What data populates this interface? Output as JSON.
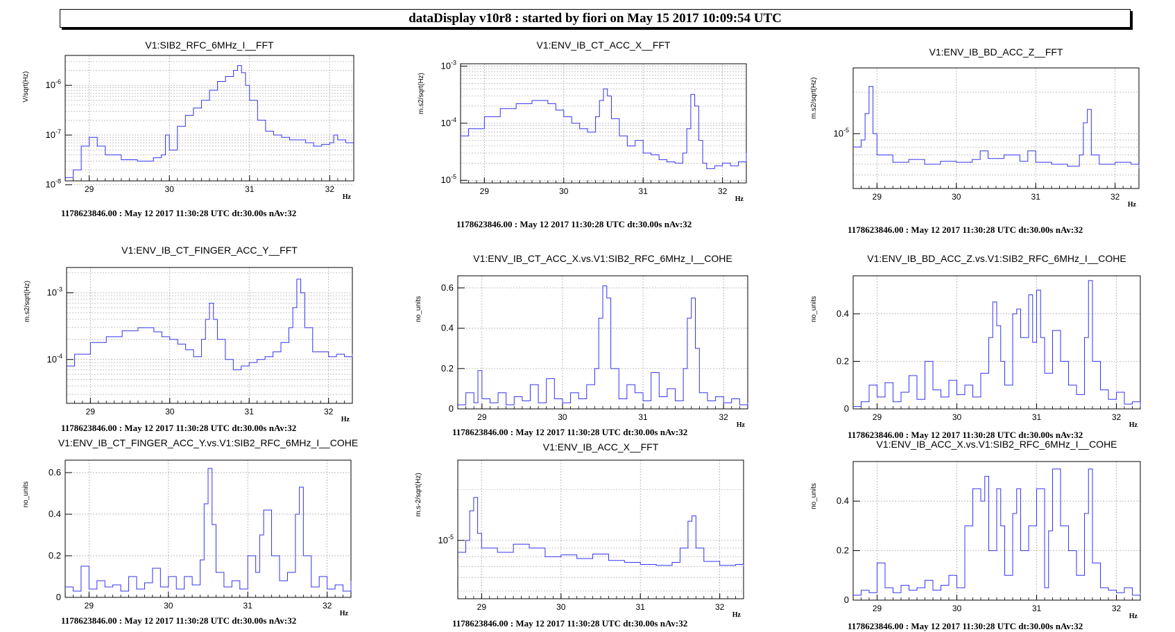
{
  "header": {
    "title": "dataDisplay v10r8 : started by fiori on May 15 2017 10:09:54 UTC"
  },
  "footer_text": "1178623846.00 : May 12 2017 11:30:28 UTC dt:30.00s nAv:32",
  "colors": {
    "trace": "#3333ee",
    "grid": "#a0a0a0",
    "frame": "#000000"
  },
  "chart_data": [
    {
      "type": "line",
      "title": "V1:SIB2_RFC_6MHz_I__FFT",
      "ylabel": "V/sqrt(Hz)",
      "xlabel": "Hz",
      "xlim": [
        28.7,
        32.3
      ],
      "ylog": true,
      "ylim": [
        1.2e-08,
        4e-06
      ],
      "xticks": [
        29,
        30,
        31,
        32
      ],
      "yticks": [
        {
          "v": 1e-08,
          "base": "10",
          "exp": "-8"
        },
        {
          "v": 1e-07,
          "base": "10",
          "exp": "-7"
        },
        {
          "v": 1e-06,
          "base": "10",
          "exp": "-6"
        }
      ],
      "series": [
        {
          "x": [
            28.7,
            28.8,
            28.9,
            29.0,
            29.1,
            29.2,
            29.4,
            29.6,
            29.8,
            29.9,
            29.95,
            30.0,
            30.1,
            30.2,
            30.3,
            30.4,
            30.5,
            30.6,
            30.7,
            30.8,
            30.85,
            30.9,
            30.95,
            31.0,
            31.1,
            31.2,
            31.3,
            31.4,
            31.5,
            31.6,
            31.7,
            31.8,
            31.9,
            32.0,
            32.05,
            32.1,
            32.2,
            32.3
          ],
          "y": [
            1.4e-08,
            2e-08,
            6e-08,
            9e-08,
            6e-08,
            4e-08,
            3.2e-08,
            3e-08,
            3.5e-08,
            4e-08,
            1e-07,
            5e-08,
            1.5e-07,
            2.5e-07,
            3.5e-07,
            5e-07,
            8e-07,
            1.2e-06,
            1.5e-06,
            2e-06,
            2.5e-06,
            1.8e-06,
            1e-06,
            5e-07,
            2e-07,
            1.2e-07,
            1e-07,
            9e-08,
            8e-08,
            8e-08,
            7e-08,
            6e-08,
            6.5e-08,
            7e-08,
            1e-07,
            8e-08,
            7e-08,
            7e-08
          ]
        }
      ]
    },
    {
      "type": "line",
      "title": "V1:ENV_IB_CT_ACC_X__FFT",
      "ylabel": "m.s2/sqrt(Hz)",
      "xlabel": "Hz",
      "xlim": [
        28.7,
        32.3
      ],
      "ylog": true,
      "ylim": [
        9e-06,
        0.0011
      ],
      "xticks": [
        29,
        30,
        31,
        32
      ],
      "yticks": [
        {
          "v": 1e-05,
          "base": "10",
          "exp": "-5"
        },
        {
          "v": 0.0001,
          "base": "10",
          "exp": "-4"
        },
        {
          "v": 0.001,
          "base": "10",
          "exp": "-3"
        }
      ],
      "series": [
        {
          "x": [
            28.7,
            28.8,
            29.0,
            29.2,
            29.4,
            29.6,
            29.8,
            29.9,
            30.0,
            30.1,
            30.2,
            30.3,
            30.4,
            30.45,
            30.5,
            30.55,
            30.6,
            30.7,
            30.8,
            30.9,
            31.0,
            31.1,
            31.2,
            31.3,
            31.4,
            31.5,
            31.55,
            31.6,
            31.65,
            31.7,
            31.75,
            31.8,
            31.9,
            32.0,
            32.1,
            32.2,
            32.3
          ],
          "y": [
            6e-05,
            8e-05,
            0.00013,
            0.00018,
            0.00022,
            0.00025,
            0.00022,
            0.00017,
            0.00013,
            0.0001,
            8e-05,
            7e-05,
            0.00013,
            0.00025,
            0.0004,
            0.0003,
            0.00012,
            6e-05,
            4e-05,
            5e-05,
            3e-05,
            2.8e-05,
            2.3e-05,
            2.1e-05,
            2e-05,
            3e-05,
            8e-05,
            0.00032,
            0.0002,
            5e-05,
            2e-05,
            1.6e-05,
            1.8e-05,
            2e-05,
            1.8e-05,
            2.1e-05,
            3e-05
          ]
        }
      ]
    },
    {
      "type": "line",
      "title": "V1:ENV_IB_BD_ACC_Z__FFT",
      "ylabel": "m.s2/sqrt(Hz)",
      "xlabel": "Hz",
      "xlim": [
        28.7,
        32.3
      ],
      "ylog": true,
      "ylim": [
        4e-06,
        3e-05
      ],
      "xticks": [
        29,
        30,
        31,
        32
      ],
      "yticks": [
        {
          "v": 1e-05,
          "base": "10",
          "exp": "-5"
        }
      ],
      "series": [
        {
          "x": [
            28.7,
            28.8,
            28.85,
            28.9,
            28.95,
            29.0,
            29.2,
            29.4,
            29.6,
            29.8,
            30.0,
            30.2,
            30.3,
            30.4,
            30.6,
            30.8,
            30.9,
            31.0,
            31.2,
            31.4,
            31.55,
            31.6,
            31.65,
            31.7,
            31.8,
            32.0,
            32.2,
            32.3
          ],
          "y": [
            8e-06,
            9e-06,
            1.4e-05,
            2.2e-05,
            1e-05,
            7e-06,
            6.2e-06,
            6.5e-06,
            6e-06,
            6.3e-06,
            6.2e-06,
            6.5e-06,
            7.5e-06,
            6.6e-06,
            7e-06,
            6.3e-06,
            7.5e-06,
            6.2e-06,
            6e-06,
            5.8e-06,
            7e-06,
            1.2e-05,
            1.5e-05,
            7e-06,
            6e-06,
            6.2e-06,
            6e-06,
            5.6e-06
          ]
        }
      ]
    },
    {
      "type": "line",
      "title": "V1:ENV_IB_CT_FINGER_ACC_Y__FFT",
      "ylabel": "m.s2/sqrt(Hz)",
      "xlabel": "Hz",
      "xlim": [
        28.7,
        32.3
      ],
      "ylog": true,
      "ylim": [
        2.2e-05,
        0.0024
      ],
      "xticks": [
        29,
        30,
        31,
        32
      ],
      "yticks": [
        {
          "v": 0.0001,
          "base": "10",
          "exp": "-4"
        },
        {
          "v": 0.001,
          "base": "10",
          "exp": "-3"
        }
      ],
      "series": [
        {
          "x": [
            28.7,
            28.8,
            29.0,
            29.2,
            29.4,
            29.6,
            29.8,
            29.9,
            30.0,
            30.1,
            30.2,
            30.3,
            30.4,
            30.45,
            30.5,
            30.55,
            30.6,
            30.7,
            30.8,
            30.9,
            31.0,
            31.1,
            31.2,
            31.3,
            31.4,
            31.5,
            31.55,
            31.6,
            31.65,
            31.7,
            31.8,
            32.0,
            32.1,
            32.2,
            32.3
          ],
          "y": [
            8e-05,
            0.00012,
            0.00018,
            0.00022,
            0.00027,
            0.0003,
            0.00026,
            0.00022,
            0.0002,
            0.00017,
            0.00014,
            0.00011,
            0.0002,
            0.0004,
            0.0007,
            0.0004,
            0.0002,
            0.0001,
            7e-05,
            8e-05,
            9e-05,
            0.0001,
            0.00011,
            0.00013,
            0.00018,
            0.0003,
            0.0006,
            0.0016,
            0.001,
            0.0003,
            0.00013,
            0.00011,
            0.00012,
            0.00011,
            0.00012
          ]
        }
      ]
    },
    {
      "type": "line",
      "title": "V1:ENV_IB_CT_ACC_X.vs.V1:SIB2_RFC_6MHz_I__COHE",
      "ylabel": "no_units",
      "xlabel": "Hz",
      "xlim": [
        28.7,
        32.3
      ],
      "ylog": false,
      "ylim": [
        0,
        0.66
      ],
      "xticks": [
        29,
        30,
        31,
        32
      ],
      "yticks": [
        {
          "v": 0,
          "label": "0"
        },
        {
          "v": 0.2,
          "label": "0.2"
        },
        {
          "v": 0.4,
          "label": "0.4"
        },
        {
          "v": 0.6,
          "label": "0.6"
        }
      ],
      "series": [
        {
          "x": [
            28.7,
            28.8,
            28.9,
            28.95,
            29.0,
            29.1,
            29.2,
            29.3,
            29.4,
            29.5,
            29.6,
            29.7,
            29.8,
            29.9,
            30.0,
            30.1,
            30.2,
            30.3,
            30.4,
            30.45,
            30.5,
            30.55,
            30.6,
            30.7,
            30.8,
            30.9,
            31.0,
            31.1,
            31.2,
            31.3,
            31.4,
            31.5,
            31.55,
            31.6,
            31.65,
            31.7,
            31.8,
            31.9,
            32.0,
            32.1,
            32.2,
            32.3
          ],
          "y": [
            0.02,
            0.08,
            0.03,
            0.19,
            0.05,
            0.03,
            0.08,
            0.02,
            0.06,
            0.04,
            0.12,
            0.03,
            0.15,
            0.05,
            0.03,
            0.08,
            0.05,
            0.12,
            0.2,
            0.45,
            0.61,
            0.55,
            0.2,
            0.05,
            0.12,
            0.08,
            0.04,
            0.18,
            0.06,
            0.1,
            0.04,
            0.2,
            0.45,
            0.55,
            0.3,
            0.08,
            0.04,
            0.06,
            0.03,
            0.05,
            0.02,
            0.03
          ]
        }
      ]
    },
    {
      "type": "line",
      "title": "V1:ENV_IB_BD_ACC_Z.vs.V1:SIB2_RFC_6MHz_I__COHE",
      "ylabel": "no_units",
      "xlabel": "Hz",
      "xlim": [
        28.7,
        32.3
      ],
      "ylog": false,
      "ylim": [
        0,
        0.56
      ],
      "xticks": [
        29,
        30,
        31,
        32
      ],
      "yticks": [
        {
          "v": 0,
          "label": "0"
        },
        {
          "v": 0.2,
          "label": "0.2"
        },
        {
          "v": 0.4,
          "label": "0.4"
        }
      ],
      "series": [
        {
          "x": [
            28.7,
            28.8,
            28.9,
            29.0,
            29.1,
            29.2,
            29.3,
            29.4,
            29.5,
            29.6,
            29.7,
            29.8,
            29.9,
            30.0,
            30.1,
            30.2,
            30.3,
            30.4,
            30.45,
            30.5,
            30.55,
            30.6,
            30.7,
            30.75,
            30.8,
            30.9,
            30.95,
            31.0,
            31.05,
            31.1,
            31.2,
            31.3,
            31.4,
            31.5,
            31.6,
            31.65,
            31.7,
            31.8,
            31.9,
            32.0,
            32.1,
            32.2,
            32.3
          ],
          "y": [
            0.01,
            0.03,
            0.1,
            0.05,
            0.11,
            0.03,
            0.07,
            0.14,
            0.04,
            0.2,
            0.08,
            0.05,
            0.12,
            0.06,
            0.1,
            0.05,
            0.15,
            0.3,
            0.45,
            0.35,
            0.2,
            0.1,
            0.4,
            0.42,
            0.3,
            0.48,
            0.28,
            0.5,
            0.3,
            0.15,
            0.33,
            0.2,
            0.1,
            0.06,
            0.3,
            0.54,
            0.2,
            0.08,
            0.04,
            0.07,
            0.02,
            0.03,
            0.01
          ]
        }
      ]
    },
    {
      "type": "line",
      "title": "V1:ENV_IB_CT_FINGER_ACC_Y.vs.V1:SIB2_RFC_6MHz_I__COHE",
      "ylabel": "no_units",
      "xlabel": "Hz",
      "xlim": [
        28.7,
        32.3
      ],
      "ylog": false,
      "ylim": [
        0,
        0.66
      ],
      "xticks": [
        29,
        30,
        31,
        32
      ],
      "yticks": [
        {
          "v": 0,
          "label": "0"
        },
        {
          "v": 0.2,
          "label": "0.2"
        },
        {
          "v": 0.4,
          "label": "0.4"
        },
        {
          "v": 0.6,
          "label": "0.6"
        }
      ],
      "series": [
        {
          "x": [
            28.7,
            28.8,
            28.9,
            29.0,
            29.1,
            29.2,
            29.3,
            29.4,
            29.5,
            29.6,
            29.7,
            29.8,
            29.9,
            30.0,
            30.1,
            30.2,
            30.3,
            30.4,
            30.45,
            30.5,
            30.55,
            30.6,
            30.7,
            30.8,
            30.9,
            31.0,
            31.1,
            31.15,
            31.2,
            31.3,
            31.4,
            31.5,
            31.6,
            31.65,
            31.7,
            31.8,
            31.9,
            32.0,
            32.1,
            32.2,
            32.3
          ],
          "y": [
            0.05,
            0.03,
            0.15,
            0.04,
            0.08,
            0.05,
            0.06,
            0.03,
            0.1,
            0.04,
            0.07,
            0.14,
            0.05,
            0.1,
            0.04,
            0.1,
            0.06,
            0.18,
            0.45,
            0.62,
            0.35,
            0.12,
            0.05,
            0.08,
            0.04,
            0.2,
            0.12,
            0.3,
            0.42,
            0.2,
            0.08,
            0.12,
            0.4,
            0.53,
            0.2,
            0.05,
            0.1,
            0.04,
            0.06,
            0.03,
            0.08
          ]
        }
      ]
    },
    {
      "type": "line",
      "title": "V1:ENV_IB_ACC_X__FFT",
      "ylabel": "m.s-2/sqrt(Hz)",
      "xlabel": "Hz",
      "xlim": [
        28.7,
        32.3
      ],
      "ylog": true,
      "ylim": [
        4.5e-06,
        3e-05
      ],
      "xticks": [
        29,
        30,
        31,
        32
      ],
      "yticks": [
        {
          "v": 1e-05,
          "base": "10",
          "exp": "-5"
        }
      ],
      "series": [
        {
          "x": [
            28.7,
            28.8,
            28.85,
            28.9,
            28.95,
            29.0,
            29.2,
            29.4,
            29.6,
            29.8,
            30.0,
            30.2,
            30.4,
            30.6,
            30.8,
            31.0,
            31.2,
            31.4,
            31.5,
            31.6,
            31.65,
            31.7,
            31.8,
            32.0,
            32.2,
            32.3
          ],
          "y": [
            8.5e-06,
            1e-05,
            1.5e-05,
            1.8e-05,
            1.1e-05,
            9e-06,
            8.5e-06,
            9.5e-06,
            9e-06,
            8e-06,
            8.2e-06,
            7.8e-06,
            8.3e-06,
            7.6e-06,
            7.4e-06,
            7.2e-06,
            7.1e-06,
            7.4e-06,
            9e-06,
            1.3e-05,
            1.4e-05,
            9e-06,
            7.5e-06,
            7.1e-06,
            7.2e-06,
            7e-06
          ]
        }
      ]
    },
    {
      "type": "line",
      "title": "V1:ENV_IB_ACC_X.vs.V1:SIB2_RFC_6MHz_I__COHE",
      "ylabel": "no_units",
      "xlabel": "Hz",
      "xlim": [
        28.7,
        32.3
      ],
      "ylog": false,
      "ylim": [
        0,
        0.56
      ],
      "xticks": [
        29,
        30,
        31,
        32
      ],
      "yticks": [
        {
          "v": 0,
          "label": "0"
        },
        {
          "v": 0.2,
          "label": "0.2"
        },
        {
          "v": 0.4,
          "label": "0.4"
        }
      ],
      "series": [
        {
          "x": [
            28.7,
            28.8,
            28.9,
            29.0,
            29.1,
            29.2,
            29.3,
            29.4,
            29.5,
            29.6,
            29.7,
            29.8,
            29.9,
            30.0,
            30.1,
            30.2,
            30.3,
            30.35,
            30.4,
            30.5,
            30.55,
            30.6,
            30.7,
            30.75,
            30.8,
            30.9,
            31.0,
            31.1,
            31.15,
            31.2,
            31.3,
            31.4,
            31.5,
            31.6,
            31.65,
            31.7,
            31.8,
            31.9,
            32.0,
            32.1,
            32.2,
            32.3
          ],
          "y": [
            0.02,
            0.04,
            0.03,
            0.15,
            0.05,
            0.03,
            0.06,
            0.04,
            0.05,
            0.08,
            0.04,
            0.06,
            0.1,
            0.05,
            0.3,
            0.45,
            0.4,
            0.5,
            0.2,
            0.45,
            0.3,
            0.1,
            0.35,
            0.45,
            0.2,
            0.3,
            0.45,
            0.05,
            0.28,
            0.53,
            0.3,
            0.2,
            0.1,
            0.35,
            0.53,
            0.15,
            0.05,
            0.04,
            0.03,
            0.05,
            0.02,
            0.03
          ]
        }
      ]
    }
  ]
}
